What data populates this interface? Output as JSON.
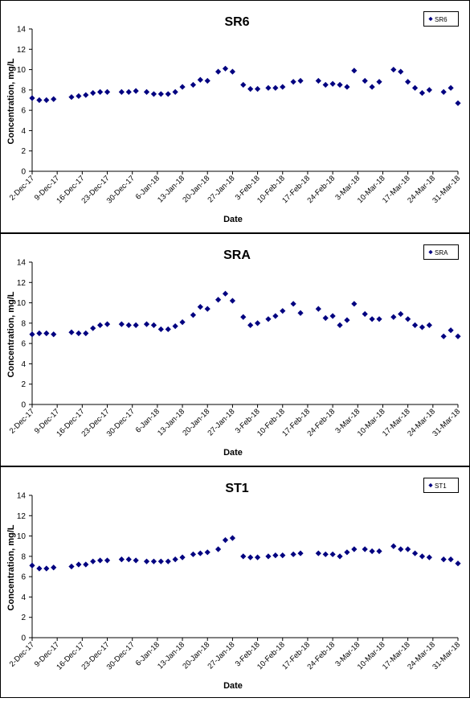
{
  "chart_data": [
    {
      "type": "scatter",
      "title": "SR6",
      "xlabel": "Date",
      "ylabel": "Concentration, mg/L",
      "ylim": [
        0,
        14
      ],
      "yticks": [
        "0",
        "2",
        "4",
        "6",
        "8",
        "10",
        "12",
        "14"
      ],
      "x_range": [
        "2017-12-02",
        "2018-03-31"
      ],
      "xticks": [
        "2-Dec-17",
        "9-Dec-17",
        "16-Dec-17",
        "23-Dec-17",
        "30-Dec-17",
        "6-Jan-18",
        "13-Jan-18",
        "20-Jan-18",
        "27-Jan-18",
        "3-Feb-18",
        "10-Feb-18",
        "17-Feb-18",
        "24-Feb-18",
        "3-Mar-18",
        "10-Mar-18",
        "17-Mar-18",
        "24-Mar-18",
        "31-Mar-18"
      ],
      "legend_position": "top-right",
      "marker_color": "#000080",
      "series": [
        {
          "name": "SR6",
          "points": [
            {
              "x": "2017-12-02",
              "y": 7.2
            },
            {
              "x": "2017-12-04",
              "y": 7.0
            },
            {
              "x": "2017-12-06",
              "y": 7.0
            },
            {
              "x": "2017-12-08",
              "y": 7.1
            },
            {
              "x": "2017-12-13",
              "y": 7.3
            },
            {
              "x": "2017-12-15",
              "y": 7.4
            },
            {
              "x": "2017-12-17",
              "y": 7.5
            },
            {
              "x": "2017-12-19",
              "y": 7.7
            },
            {
              "x": "2017-12-21",
              "y": 7.8
            },
            {
              "x": "2017-12-23",
              "y": 7.8
            },
            {
              "x": "2017-12-27",
              "y": 7.8
            },
            {
              "x": "2017-12-29",
              "y": 7.8
            },
            {
              "x": "2017-12-31",
              "y": 7.9
            },
            {
              "x": "2018-01-03",
              "y": 7.8
            },
            {
              "x": "2018-01-05",
              "y": 7.6
            },
            {
              "x": "2018-01-07",
              "y": 7.6
            },
            {
              "x": "2018-01-09",
              "y": 7.6
            },
            {
              "x": "2018-01-11",
              "y": 7.8
            },
            {
              "x": "2018-01-13",
              "y": 8.3
            },
            {
              "x": "2018-01-16",
              "y": 8.5
            },
            {
              "x": "2018-01-18",
              "y": 9.0
            },
            {
              "x": "2018-01-20",
              "y": 8.9
            },
            {
              "x": "2018-01-23",
              "y": 9.8
            },
            {
              "x": "2018-01-25",
              "y": 10.1
            },
            {
              "x": "2018-01-27",
              "y": 9.8
            },
            {
              "x": "2018-01-30",
              "y": 8.5
            },
            {
              "x": "2018-02-01",
              "y": 8.1
            },
            {
              "x": "2018-02-03",
              "y": 8.1
            },
            {
              "x": "2018-02-06",
              "y": 8.2
            },
            {
              "x": "2018-02-08",
              "y": 8.2
            },
            {
              "x": "2018-02-10",
              "y": 8.3
            },
            {
              "x": "2018-02-13",
              "y": 8.8
            },
            {
              "x": "2018-02-15",
              "y": 8.9
            },
            {
              "x": "2018-02-20",
              "y": 8.9
            },
            {
              "x": "2018-02-22",
              "y": 8.5
            },
            {
              "x": "2018-02-24",
              "y": 8.6
            },
            {
              "x": "2018-02-26",
              "y": 8.5
            },
            {
              "x": "2018-02-28",
              "y": 8.3
            },
            {
              "x": "2018-03-02",
              "y": 9.9
            },
            {
              "x": "2018-03-05",
              "y": 8.9
            },
            {
              "x": "2018-03-07",
              "y": 8.3
            },
            {
              "x": "2018-03-09",
              "y": 8.8
            },
            {
              "x": "2018-03-13",
              "y": 10.0
            },
            {
              "x": "2018-03-15",
              "y": 9.8
            },
            {
              "x": "2018-03-17",
              "y": 8.8
            },
            {
              "x": "2018-03-19",
              "y": 8.2
            },
            {
              "x": "2018-03-21",
              "y": 7.7
            },
            {
              "x": "2018-03-23",
              "y": 8.0
            },
            {
              "x": "2018-03-27",
              "y": 7.8
            },
            {
              "x": "2018-03-29",
              "y": 8.2
            },
            {
              "x": "2018-03-31",
              "y": 6.7
            }
          ]
        }
      ]
    },
    {
      "type": "scatter",
      "title": "SRA",
      "xlabel": "Date",
      "ylabel": "Concentration, mg/L",
      "ylim": [
        0,
        14
      ],
      "yticks": [
        "0",
        "2",
        "4",
        "6",
        "8",
        "10",
        "12",
        "14"
      ],
      "x_range": [
        "2017-12-02",
        "2018-03-31"
      ],
      "xticks": [
        "2-Dec-17",
        "9-Dec-17",
        "16-Dec-17",
        "23-Dec-17",
        "30-Dec-17",
        "6-Jan-18",
        "13-Jan-18",
        "20-Jan-18",
        "27-Jan-18",
        "3-Feb-18",
        "10-Feb-18",
        "17-Feb-18",
        "24-Feb-18",
        "3-Mar-18",
        "10-Mar-18",
        "17-Mar-18",
        "24-Mar-18",
        "31-Mar-18"
      ],
      "legend_position": "top-right",
      "marker_color": "#000080",
      "series": [
        {
          "name": "SRA",
          "points": [
            {
              "x": "2017-12-02",
              "y": 6.9
            },
            {
              "x": "2017-12-04",
              "y": 7.0
            },
            {
              "x": "2017-12-06",
              "y": 7.0
            },
            {
              "x": "2017-12-08",
              "y": 6.9
            },
            {
              "x": "2017-12-13",
              "y": 7.1
            },
            {
              "x": "2017-12-15",
              "y": 7.0
            },
            {
              "x": "2017-12-17",
              "y": 7.0
            },
            {
              "x": "2017-12-19",
              "y": 7.5
            },
            {
              "x": "2017-12-21",
              "y": 7.8
            },
            {
              "x": "2017-12-23",
              "y": 7.9
            },
            {
              "x": "2017-12-27",
              "y": 7.9
            },
            {
              "x": "2017-12-29",
              "y": 7.8
            },
            {
              "x": "2017-12-31",
              "y": 7.8
            },
            {
              "x": "2018-01-03",
              "y": 7.9
            },
            {
              "x": "2018-01-05",
              "y": 7.8
            },
            {
              "x": "2018-01-07",
              "y": 7.4
            },
            {
              "x": "2018-01-09",
              "y": 7.4
            },
            {
              "x": "2018-01-11",
              "y": 7.7
            },
            {
              "x": "2018-01-13",
              "y": 8.1
            },
            {
              "x": "2018-01-16",
              "y": 8.8
            },
            {
              "x": "2018-01-18",
              "y": 9.6
            },
            {
              "x": "2018-01-20",
              "y": 9.4
            },
            {
              "x": "2018-01-23",
              "y": 10.3
            },
            {
              "x": "2018-01-25",
              "y": 10.9
            },
            {
              "x": "2018-01-27",
              "y": 10.2
            },
            {
              "x": "2018-01-30",
              "y": 8.6
            },
            {
              "x": "2018-02-01",
              "y": 7.8
            },
            {
              "x": "2018-02-03",
              "y": 8.0
            },
            {
              "x": "2018-02-06",
              "y": 8.4
            },
            {
              "x": "2018-02-08",
              "y": 8.7
            },
            {
              "x": "2018-02-10",
              "y": 9.2
            },
            {
              "x": "2018-02-13",
              "y": 9.9
            },
            {
              "x": "2018-02-15",
              "y": 9.0
            },
            {
              "x": "2018-02-20",
              "y": 9.4
            },
            {
              "x": "2018-02-22",
              "y": 8.5
            },
            {
              "x": "2018-02-24",
              "y": 8.7
            },
            {
              "x": "2018-02-26",
              "y": 7.8
            },
            {
              "x": "2018-02-28",
              "y": 8.3
            },
            {
              "x": "2018-03-02",
              "y": 9.9
            },
            {
              "x": "2018-03-05",
              "y": 8.9
            },
            {
              "x": "2018-03-07",
              "y": 8.4
            },
            {
              "x": "2018-03-09",
              "y": 8.4
            },
            {
              "x": "2018-03-13",
              "y": 8.6
            },
            {
              "x": "2018-03-15",
              "y": 8.9
            },
            {
              "x": "2018-03-17",
              "y": 8.4
            },
            {
              "x": "2018-03-19",
              "y": 7.8
            },
            {
              "x": "2018-03-21",
              "y": 7.6
            },
            {
              "x": "2018-03-23",
              "y": 7.8
            },
            {
              "x": "2018-03-27",
              "y": 6.7
            },
            {
              "x": "2018-03-29",
              "y": 7.3
            },
            {
              "x": "2018-03-31",
              "y": 6.7
            }
          ]
        }
      ]
    },
    {
      "type": "scatter",
      "title": "ST1",
      "xlabel": "Date",
      "ylabel": "Concentration, mg/L",
      "ylim": [
        0,
        14
      ],
      "yticks": [
        "0",
        "2",
        "4",
        "6",
        "8",
        "10",
        "12",
        "14"
      ],
      "x_range": [
        "2017-12-02",
        "2018-03-31"
      ],
      "xticks": [
        "2-Dec-17",
        "9-Dec-17",
        "16-Dec-17",
        "23-Dec-17",
        "30-Dec-17",
        "6-Jan-18",
        "13-Jan-18",
        "20-Jan-18",
        "27-Jan-18",
        "3-Feb-18",
        "10-Feb-18",
        "17-Feb-18",
        "24-Feb-18",
        "3-Mar-18",
        "10-Mar-18",
        "17-Mar-18",
        "24-Mar-18",
        "31-Mar-18"
      ],
      "legend_position": "top-right",
      "marker_color": "#000080",
      "series": [
        {
          "name": "ST1",
          "points": [
            {
              "x": "2017-12-02",
              "y": 7.1
            },
            {
              "x": "2017-12-04",
              "y": 6.8
            },
            {
              "x": "2017-12-06",
              "y": 6.8
            },
            {
              "x": "2017-12-08",
              "y": 6.9
            },
            {
              "x": "2017-12-13",
              "y": 7.0
            },
            {
              "x": "2017-12-15",
              "y": 7.2
            },
            {
              "x": "2017-12-17",
              "y": 7.2
            },
            {
              "x": "2017-12-19",
              "y": 7.5
            },
            {
              "x": "2017-12-21",
              "y": 7.6
            },
            {
              "x": "2017-12-23",
              "y": 7.6
            },
            {
              "x": "2017-12-27",
              "y": 7.7
            },
            {
              "x": "2017-12-29",
              "y": 7.7
            },
            {
              "x": "2017-12-31",
              "y": 7.6
            },
            {
              "x": "2018-01-03",
              "y": 7.5
            },
            {
              "x": "2018-01-05",
              "y": 7.5
            },
            {
              "x": "2018-01-07",
              "y": 7.5
            },
            {
              "x": "2018-01-09",
              "y": 7.5
            },
            {
              "x": "2018-01-11",
              "y": 7.7
            },
            {
              "x": "2018-01-13",
              "y": 7.9
            },
            {
              "x": "2018-01-16",
              "y": 8.2
            },
            {
              "x": "2018-01-18",
              "y": 8.3
            },
            {
              "x": "2018-01-20",
              "y": 8.4
            },
            {
              "x": "2018-01-23",
              "y": 8.7
            },
            {
              "x": "2018-01-25",
              "y": 9.6
            },
            {
              "x": "2018-01-27",
              "y": 9.8
            },
            {
              "x": "2018-01-30",
              "y": 8.0
            },
            {
              "x": "2018-02-01",
              "y": 7.9
            },
            {
              "x": "2018-02-03",
              "y": 7.9
            },
            {
              "x": "2018-02-06",
              "y": 8.0
            },
            {
              "x": "2018-02-08",
              "y": 8.1
            },
            {
              "x": "2018-02-10",
              "y": 8.1
            },
            {
              "x": "2018-02-13",
              "y": 8.2
            },
            {
              "x": "2018-02-15",
              "y": 8.3
            },
            {
              "x": "2018-02-20",
              "y": 8.3
            },
            {
              "x": "2018-02-22",
              "y": 8.2
            },
            {
              "x": "2018-02-24",
              "y": 8.2
            },
            {
              "x": "2018-02-26",
              "y": 8.0
            },
            {
              "x": "2018-02-28",
              "y": 8.4
            },
            {
              "x": "2018-03-02",
              "y": 8.7
            },
            {
              "x": "2018-03-05",
              "y": 8.7
            },
            {
              "x": "2018-03-07",
              "y": 8.5
            },
            {
              "x": "2018-03-09",
              "y": 8.5
            },
            {
              "x": "2018-03-13",
              "y": 9.0
            },
            {
              "x": "2018-03-15",
              "y": 8.7
            },
            {
              "x": "2018-03-17",
              "y": 8.7
            },
            {
              "x": "2018-03-19",
              "y": 8.3
            },
            {
              "x": "2018-03-21",
              "y": 8.0
            },
            {
              "x": "2018-03-23",
              "y": 7.9
            },
            {
              "x": "2018-03-27",
              "y": 7.7
            },
            {
              "x": "2018-03-29",
              "y": 7.7
            },
            {
              "x": "2018-03-31",
              "y": 7.3
            }
          ]
        }
      ]
    }
  ]
}
